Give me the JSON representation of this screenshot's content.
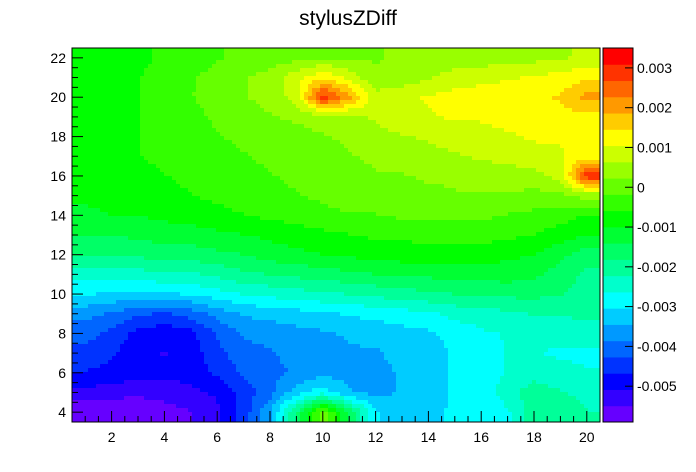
{
  "chart_data": {
    "type": "heatmap",
    "title": "stylusZDiff",
    "xlabel": "",
    "ylabel": "",
    "xlim": [
      0.5,
      20.5
    ],
    "ylim": [
      3.5,
      22.5
    ],
    "x_ticks": [
      2,
      4,
      6,
      8,
      10,
      12,
      14,
      16,
      18,
      20
    ],
    "y_ticks": [
      4,
      6,
      8,
      10,
      12,
      14,
      16,
      18,
      20,
      22
    ],
    "colorbar": {
      "min": -0.0059,
      "max": 0.0035,
      "ticks": [
        0.003,
        0.002,
        0.001,
        0,
        -0.001,
        -0.002,
        -0.003,
        -0.004,
        -0.005
      ],
      "tick_labels": [
        "0.003",
        "0.002",
        "0.001",
        "0",
        "-0.001",
        "-0.002",
        "-0.003",
        "-0.004",
        "-0.005"
      ],
      "levels": 20,
      "colors": [
        "#6600ff",
        "#3300ff",
        "#0000ff",
        "#0033ff",
        "#0066ff",
        "#0099ff",
        "#00ccff",
        "#00ffff",
        "#00ffcc",
        "#00ff99",
        "#00ff66",
        "#00ff33",
        "#00ff00",
        "#33ff00",
        "#66ff00",
        "#99ff00",
        "#ccff00",
        "#ffff00",
        "#ffcc00",
        "#ff9900",
        "#ff6600",
        "#ff3300",
        "#ff0000"
      ]
    },
    "x": [
      1,
      2,
      3,
      4,
      5,
      6,
      7,
      8,
      9,
      10,
      11,
      12,
      13,
      14,
      15,
      16,
      17,
      18,
      19,
      20
    ],
    "y": [
      4,
      5,
      6,
      7,
      8,
      9,
      10,
      11,
      12,
      13,
      14,
      15,
      16,
      17,
      18,
      19,
      20,
      21,
      22
    ],
    "z": [
      [
        -0.0059,
        -0.0059,
        -0.0058,
        -0.0057,
        -0.0055,
        -0.0052,
        -0.0045,
        -0.0035,
        -0.0018,
        0.0001,
        -0.0015,
        -0.003,
        -0.0033,
        -0.0031,
        -0.003,
        -0.003,
        -0.0027,
        -0.002,
        -0.0018,
        -0.0022
      ],
      [
        -0.0052,
        -0.0053,
        -0.0054,
        -0.0053,
        -0.0052,
        -0.005,
        -0.0045,
        -0.004,
        -0.0032,
        -0.0028,
        -0.0034,
        -0.0036,
        -0.0034,
        -0.0032,
        -0.003,
        -0.0029,
        -0.0024,
        -0.002,
        -0.0022,
        -0.0024
      ],
      [
        -0.0047,
        -0.0048,
        -0.0049,
        -0.005,
        -0.0049,
        -0.0046,
        -0.0042,
        -0.004,
        -0.0038,
        -0.0036,
        -0.0036,
        -0.0036,
        -0.0034,
        -0.0032,
        -0.003,
        -0.0029,
        -0.0026,
        -0.0024,
        -0.0025,
        -0.0026
      ],
      [
        -0.0044,
        -0.0046,
        -0.005,
        -0.0051,
        -0.0049,
        -0.0044,
        -0.004,
        -0.0039,
        -0.0037,
        -0.0036,
        -0.0035,
        -0.0035,
        -0.0033,
        -0.0032,
        -0.003,
        -0.0028,
        -0.0026,
        -0.0026,
        -0.0027,
        -0.0027
      ],
      [
        -0.0041,
        -0.0044,
        -0.0048,
        -0.005,
        -0.0048,
        -0.0042,
        -0.0038,
        -0.0037,
        -0.0036,
        -0.0035,
        -0.0034,
        -0.0033,
        -0.0032,
        -0.0031,
        -0.0029,
        -0.0027,
        -0.0026,
        -0.0025,
        -0.0025,
        -0.0024
      ],
      [
        -0.0037,
        -0.0039,
        -0.0042,
        -0.0043,
        -0.0041,
        -0.0037,
        -0.0034,
        -0.0033,
        -0.0032,
        -0.0031,
        -0.003,
        -0.0029,
        -0.0028,
        -0.0027,
        -0.0025,
        -0.0024,
        -0.0023,
        -0.0022,
        -0.0022,
        -0.0021
      ],
      [
        -0.003,
        -0.0031,
        -0.0031,
        -0.0031,
        -0.003,
        -0.0028,
        -0.0026,
        -0.0025,
        -0.0024,
        -0.0023,
        -0.0022,
        -0.0021,
        -0.002,
        -0.0019,
        -0.0018,
        -0.0018,
        -0.0017,
        -0.0017,
        -0.0018,
        -0.002
      ],
      [
        -0.0024,
        -0.0024,
        -0.0024,
        -0.0023,
        -0.0023,
        -0.0021,
        -0.0019,
        -0.0018,
        -0.0017,
        -0.0016,
        -0.0015,
        -0.0014,
        -0.0013,
        -0.0013,
        -0.0012,
        -0.0012,
        -0.0012,
        -0.0013,
        -0.0016,
        -0.0019
      ],
      [
        -0.0018,
        -0.0018,
        -0.0017,
        -0.0017,
        -0.0016,
        -0.0015,
        -0.0014,
        -0.0012,
        -0.0011,
        -0.001,
        -0.0009,
        -0.0009,
        -0.0008,
        -0.0008,
        -0.0008,
        -0.0008,
        -0.0009,
        -0.001,
        -0.0013,
        -0.0016
      ],
      [
        -0.0014,
        -0.0014,
        -0.0013,
        -0.0012,
        -0.0012,
        -0.0011,
        -0.001,
        -0.0009,
        -0.0008,
        -0.0007,
        -0.0006,
        -0.0005,
        -0.0005,
        -0.0004,
        -0.0004,
        -0.0004,
        -0.0005,
        -0.0006,
        -0.0008,
        -0.001
      ],
      [
        -0.0011,
        -0.001,
        -0.001,
        -0.0009,
        -0.0008,
        -0.0007,
        -0.0006,
        -0.0005,
        -0.0004,
        -0.0003,
        -0.0002,
        -0.0002,
        -0.0001,
        -0.0001,
        -0.0001,
        -0.0001,
        -0.0002,
        -0.0003,
        -0.0004,
        -0.0006
      ],
      [
        -0.0009,
        -0.0008,
        -0.0008,
        -0.0007,
        -0.0006,
        -0.0005,
        -0.0004,
        -0.0003,
        -0.0002,
        -0.0001,
        0.0,
        0.0001,
        0.0001,
        0.0001,
        0.0002,
        0.0002,
        0.0002,
        0.0001,
        0.0001,
        0.0004
      ],
      [
        -0.0008,
        -0.0007,
        -0.0007,
        -0.0006,
        -0.0005,
        -0.0004,
        -0.0003,
        -0.0002,
        -0.0001,
        0.0,
        0.0001,
        0.0002,
        0.0002,
        0.0003,
        0.0003,
        0.0004,
        0.0004,
        0.0005,
        0.0008,
        0.003
      ],
      [
        -0.0007,
        -0.0007,
        -0.0006,
        -0.0005,
        -0.0004,
        -0.0003,
        -0.0002,
        -0.0001,
        0.0,
        0.0001,
        0.0002,
        0.0003,
        0.0004,
        0.0005,
        0.0006,
        0.0007,
        0.0008,
        0.0009,
        0.001,
        0.0012
      ],
      [
        -0.0007,
        -0.0007,
        -0.0006,
        -0.0005,
        -0.0004,
        -0.0002,
        -0.0001,
        0.0,
        0.0001,
        0.0002,
        0.0003,
        0.0005,
        0.0006,
        0.0007,
        0.0008,
        0.0009,
        0.001,
        0.0011,
        0.0011,
        0.0012
      ],
      [
        -0.0007,
        -0.0007,
        -0.0006,
        -0.0005,
        -0.0003,
        -0.0001,
        0.0,
        0.0002,
        0.0003,
        0.0004,
        0.0005,
        0.0007,
        0.0009,
        0.001,
        0.0011,
        0.0011,
        0.0012,
        0.0012,
        0.0013,
        0.0013
      ],
      [
        -0.0007,
        -0.0007,
        -0.0006,
        -0.0004,
        -0.0002,
        0.0,
        0.0002,
        0.0004,
        0.0008,
        0.003,
        0.002,
        0.0008,
        0.0009,
        0.0011,
        0.0012,
        0.0013,
        0.0013,
        0.0014,
        0.0015,
        0.002
      ],
      [
        -0.0008,
        -0.0007,
        -0.0006,
        -0.0004,
        -0.0002,
        -0.0001,
        0.0002,
        0.0004,
        0.0009,
        0.0014,
        0.0009,
        0.0003,
        0.0004,
        0.0006,
        0.0008,
        0.0009,
        0.001,
        0.0011,
        0.0012,
        0.0014
      ],
      [
        -0.0008,
        -0.0008,
        -0.0007,
        -0.0005,
        -0.0003,
        -0.0002,
        -0.0001,
        0.0,
        0.0001,
        0.0002,
        0.0002,
        0.0002,
        0.0003,
        0.0003,
        0.0004,
        0.0004,
        0.0005,
        0.0005,
        0.0006,
        0.0007
      ]
    ]
  }
}
